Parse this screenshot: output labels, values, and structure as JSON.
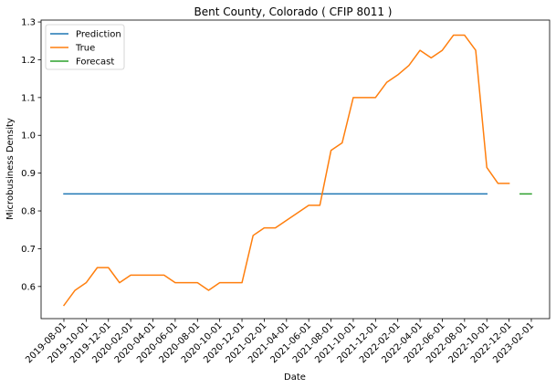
{
  "chart_data": {
    "type": "line",
    "title": "Bent County, Colorado ( CFIP 8011 )",
    "xlabel": "Date",
    "ylabel": "Microbusiness Density",
    "ylim": [
      0.515,
      1.305
    ],
    "y_ticks": [
      0.6,
      0.7,
      0.8,
      0.9,
      1.0,
      1.1,
      1.2,
      1.3
    ],
    "y_tick_labels": [
      "0.6",
      "0.7",
      "0.8",
      "0.9",
      "1.0",
      "1.1",
      "1.2",
      "1.3"
    ],
    "x_tick_labels": [
      "2019-08-01",
      "2019-10-01",
      "2019-12-01",
      "2020-02-01",
      "2020-04-01",
      "2020-06-01",
      "2020-08-01",
      "2020-10-01",
      "2020-12-01",
      "2021-02-01",
      "2021-04-01",
      "2021-06-01",
      "2021-08-01",
      "2021-10-01",
      "2021-12-01",
      "2022-02-01",
      "2022-04-01",
      "2022-06-01",
      "2022-08-01",
      "2022-10-01",
      "2022-12-01",
      "2023-02-01"
    ],
    "legend_position": "top-left",
    "series": [
      {
        "name": "Prediction",
        "color": "#1f77b4",
        "points": [
          {
            "x": "2019-08-01",
            "y": 0.845
          },
          {
            "x": "2022-10-01",
            "y": 0.845
          }
        ]
      },
      {
        "name": "True",
        "color": "#ff7f0e",
        "points": [
          {
            "x": "2019-08-01",
            "y": 0.55
          },
          {
            "x": "2019-09-01",
            "y": 0.59
          },
          {
            "x": "2019-10-01",
            "y": 0.61
          },
          {
            "x": "2019-11-01",
            "y": 0.65
          },
          {
            "x": "2019-12-01",
            "y": 0.65
          },
          {
            "x": "2020-01-01",
            "y": 0.61
          },
          {
            "x": "2020-02-01",
            "y": 0.63
          },
          {
            "x": "2020-03-01",
            "y": 0.63
          },
          {
            "x": "2020-04-01",
            "y": 0.63
          },
          {
            "x": "2020-05-01",
            "y": 0.63
          },
          {
            "x": "2020-06-01",
            "y": 0.61
          },
          {
            "x": "2020-07-01",
            "y": 0.61
          },
          {
            "x": "2020-08-01",
            "y": 0.61
          },
          {
            "x": "2020-09-01",
            "y": 0.59
          },
          {
            "x": "2020-10-01",
            "y": 0.61
          },
          {
            "x": "2020-11-01",
            "y": 0.61
          },
          {
            "x": "2020-12-01",
            "y": 0.61
          },
          {
            "x": "2021-01-01",
            "y": 0.735
          },
          {
            "x": "2021-02-01",
            "y": 0.755
          },
          {
            "x": "2021-03-01",
            "y": 0.755
          },
          {
            "x": "2021-04-01",
            "y": 0.775
          },
          {
            "x": "2021-05-01",
            "y": 0.795
          },
          {
            "x": "2021-06-01",
            "y": 0.815
          },
          {
            "x": "2021-07-01",
            "y": 0.815
          },
          {
            "x": "2021-08-01",
            "y": 0.96
          },
          {
            "x": "2021-09-01",
            "y": 0.98
          },
          {
            "x": "2021-10-01",
            "y": 1.1
          },
          {
            "x": "2021-11-01",
            "y": 1.1
          },
          {
            "x": "2021-12-01",
            "y": 1.1
          },
          {
            "x": "2022-01-01",
            "y": 1.14
          },
          {
            "x": "2022-02-01",
            "y": 1.16
          },
          {
            "x": "2022-03-01",
            "y": 1.185
          },
          {
            "x": "2022-04-01",
            "y": 1.225
          },
          {
            "x": "2022-05-01",
            "y": 1.205
          },
          {
            "x": "2022-06-01",
            "y": 1.225
          },
          {
            "x": "2022-07-01",
            "y": 1.265
          },
          {
            "x": "2022-08-01",
            "y": 1.265
          },
          {
            "x": "2022-09-01",
            "y": 1.225
          },
          {
            "x": "2022-10-01",
            "y": 0.915
          },
          {
            "x": "2022-11-01",
            "y": 0.873
          },
          {
            "x": "2022-12-01",
            "y": 0.873
          }
        ]
      },
      {
        "name": "Forecast",
        "color": "#2ca02c",
        "points": [
          {
            "x": "2023-01-01",
            "y": 0.845
          },
          {
            "x": "2023-02-01",
            "y": 0.845
          }
        ]
      }
    ]
  }
}
